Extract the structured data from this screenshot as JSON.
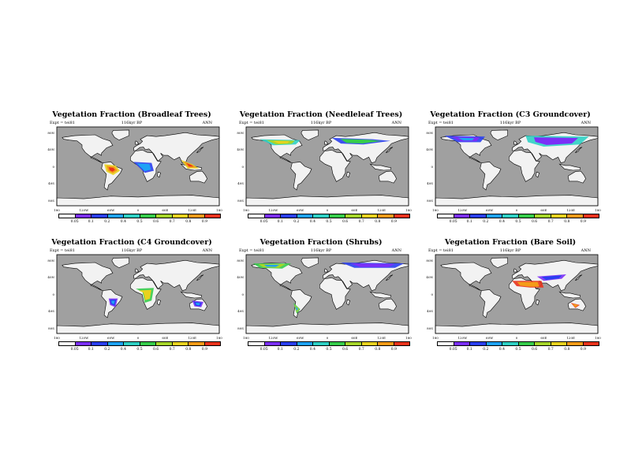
{
  "colorbar": {
    "colors": [
      "#ffffff",
      "#7b2ff7",
      "#2a3ff0",
      "#1ea2f5",
      "#2fd0c4",
      "#36cc4b",
      "#a6d62a",
      "#e8d21f",
      "#f49b18",
      "#e8331c"
    ],
    "labels": [
      "0.05",
      "0.1",
      "0.2",
      "0.4",
      "0.5",
      "0.6",
      "0.7",
      "0.8",
      "0.9"
    ]
  },
  "axes": {
    "lat_labels": [
      "80N",
      "40N",
      "0",
      "40S",
      "80S"
    ],
    "lon_labels": [
      "180",
      "120W",
      "60W",
      "0",
      "60E",
      "120E",
      "180"
    ]
  },
  "style": {
    "ocean": "#a0a0a0",
    "land": "#f2f2f2",
    "coast": "#000000"
  },
  "panels": [
    {
      "title": "Vegetation Fraction (Broadleaf Trees)",
      "expt": "Expt = tei81",
      "period": "116kyr BP",
      "season": "ANN",
      "overlay": [
        [
          "#e8d21f",
          "#f49b18",
          "#e8331c"
        ],
        [
          "#2a3ff0",
          "#1ea2f5"
        ]
      ]
    },
    {
      "title": "Vegetation Fraction (Needleleaf Trees)",
      "expt": "Expt = tei81",
      "period": "116kyr BP",
      "season": "ANN",
      "overlay": [
        [
          "#2fd0c4",
          "#a6d62a",
          "#e8d21f"
        ],
        [
          "#2a3ff0",
          "#36cc4b"
        ]
      ]
    },
    {
      "title": "Vegetation Fraction (C3 Groundcover)",
      "expt": "Expt = tei81",
      "period": "116kyr BP",
      "season": "ANN",
      "overlay": [
        [
          "#2a3ff0",
          "#7b2ff7",
          "#1ea2f5"
        ],
        [
          "#2fd0c4",
          "#7b2ff7"
        ]
      ]
    },
    {
      "title": "Vegetation Fraction (C4 Groundcover)",
      "expt": "Expt = tei81",
      "period": "116kyr BP",
      "season": "ANN",
      "overlay": [
        [
          "#7b2ff7",
          "#2a3ff0",
          "#1ea2f5"
        ],
        [
          "#36cc4b",
          "#e8d21f"
        ]
      ]
    },
    {
      "title": "Vegetation Fraction (Shrubs)",
      "expt": "Expt = tei81",
      "period": "116kyr BP",
      "season": "ANN",
      "overlay": [
        [
          "#36cc4b",
          "#a6d62a",
          "#1ea2f5"
        ],
        [
          "#2a3ff0",
          "#7b2ff7"
        ]
      ]
    },
    {
      "title": "Vegetation Fraction (Bare Soil)",
      "expt": "Expt = tei81",
      "period": "116kyr BP",
      "season": "ANN",
      "overlay": [
        [
          "#e8331c",
          "#f49b18"
        ],
        [
          "#7b2ff7",
          "#2a3ff0"
        ]
      ]
    }
  ]
}
